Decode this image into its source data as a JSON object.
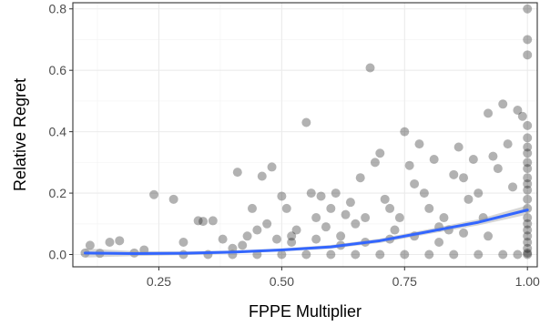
{
  "chart_data": {
    "type": "scatter",
    "title": "",
    "xlabel": "FPPE Multiplier",
    "ylabel": "Relative Regret",
    "xlim": [
      0.075,
      1.02
    ],
    "ylim": [
      -0.04,
      0.82
    ],
    "x_ticks": [
      0.25,
      0.5,
      0.75,
      1.0
    ],
    "x_tick_labels": [
      "0.25",
      "0.50",
      "0.75",
      "1.00"
    ],
    "y_ticks": [
      0.0,
      0.2,
      0.4,
      0.6,
      0.8
    ],
    "y_tick_labels": [
      "0.0",
      "0.2",
      "0.4",
      "0.6",
      "0.8"
    ],
    "grid": true,
    "legend": "none",
    "colors": {
      "points": "#000000",
      "smooth_line": "#3366FF",
      "confidence_band": "#999999",
      "grid_major": "#ebebeb",
      "grid_minor": "#f5f5f5",
      "panel_border": "#333333",
      "tick_text": "#4d4d4d"
    },
    "point_alpha": 0.3,
    "points": [
      [
        0.1,
        0.005
      ],
      [
        0.11,
        0.03
      ],
      [
        0.13,
        0.004
      ],
      [
        0.15,
        0.04
      ],
      [
        0.17,
        0.045
      ],
      [
        0.2,
        0.005
      ],
      [
        0.22,
        0.015
      ],
      [
        0.24,
        0.195
      ],
      [
        0.28,
        0.18
      ],
      [
        0.3,
        0.04
      ],
      [
        0.33,
        0.11
      ],
      [
        0.34,
        0.108
      ],
      [
        0.36,
        0.11
      ],
      [
        0.38,
        0.05
      ],
      [
        0.4,
        0.02
      ],
      [
        0.41,
        0.268
      ],
      [
        0.43,
        0.06
      ],
      [
        0.44,
        0.15
      ],
      [
        0.45,
        0.08
      ],
      [
        0.46,
        0.255
      ],
      [
        0.47,
        0.1
      ],
      [
        0.48,
        0.285
      ],
      [
        0.49,
        0.05
      ],
      [
        0.5,
        0.19
      ],
      [
        0.51,
        0.15
      ],
      [
        0.52,
        0.06
      ],
      [
        0.53,
        0.08
      ],
      [
        0.55,
        0.43
      ],
      [
        0.56,
        0.2
      ],
      [
        0.57,
        0.12
      ],
      [
        0.58,
        0.19
      ],
      [
        0.59,
        0.09
      ],
      [
        0.6,
        0.15
      ],
      [
        0.61,
        0.2
      ],
      [
        0.62,
        0.06
      ],
      [
        0.63,
        0.13
      ],
      [
        0.64,
        0.17
      ],
      [
        0.65,
        0.1
      ],
      [
        0.66,
        0.25
      ],
      [
        0.67,
        0.12
      ],
      [
        0.68,
        0.608
      ],
      [
        0.69,
        0.3
      ],
      [
        0.7,
        0.33
      ],
      [
        0.71,
        0.18
      ],
      [
        0.72,
        0.15
      ],
      [
        0.73,
        0.08
      ],
      [
        0.74,
        0.12
      ],
      [
        0.75,
        0.4
      ],
      [
        0.76,
        0.29
      ],
      [
        0.77,
        0.23
      ],
      [
        0.78,
        0.36
      ],
      [
        0.79,
        0.2
      ],
      [
        0.8,
        0.15
      ],
      [
        0.81,
        0.31
      ],
      [
        0.82,
        0.09
      ],
      [
        0.83,
        0.12
      ],
      [
        0.84,
        0.08
      ],
      [
        0.85,
        0.26
      ],
      [
        0.86,
        0.35
      ],
      [
        0.87,
        0.25
      ],
      [
        0.88,
        0.18
      ],
      [
        0.89,
        0.31
      ],
      [
        0.9,
        0.2
      ],
      [
        0.91,
        0.12
      ],
      [
        0.92,
        0.46
      ],
      [
        0.93,
        0.32
      ],
      [
        0.94,
        0.28
      ],
      [
        0.95,
        0.49
      ],
      [
        0.96,
        0.36
      ],
      [
        0.97,
        0.22
      ],
      [
        0.98,
        0.47
      ],
      [
        0.99,
        0.45
      ],
      [
        1.0,
        0.8
      ],
      [
        1.0,
        0.7
      ],
      [
        1.0,
        0.65
      ],
      [
        1.0,
        0.42
      ],
      [
        1.0,
        0.38
      ],
      [
        1.0,
        0.35
      ],
      [
        1.0,
        0.33
      ],
      [
        1.0,
        0.3
      ],
      [
        1.0,
        0.28
      ],
      [
        1.0,
        0.25
      ],
      [
        1.0,
        0.23
      ],
      [
        1.0,
        0.21
      ],
      [
        1.0,
        0.18
      ],
      [
        1.0,
        0.15
      ],
      [
        1.0,
        0.12
      ],
      [
        1.0,
        0.1
      ],
      [
        1.0,
        0.08
      ],
      [
        1.0,
        0.06
      ],
      [
        1.0,
        0.04
      ],
      [
        1.0,
        0.02
      ],
      [
        1.0,
        0.0
      ],
      [
        1.0,
        0.005
      ],
      [
        0.3,
        0.0
      ],
      [
        0.35,
        0.0
      ],
      [
        0.4,
        0.0
      ],
      [
        0.45,
        0.0
      ],
      [
        0.5,
        0.0
      ],
      [
        0.55,
        0.0
      ],
      [
        0.6,
        0.0
      ],
      [
        0.65,
        0.0
      ],
      [
        0.7,
        0.0
      ],
      [
        0.75,
        0.0
      ],
      [
        0.8,
        0.0
      ],
      [
        0.85,
        0.0
      ],
      [
        0.9,
        0.0
      ],
      [
        0.95,
        0.0
      ],
      [
        0.98,
        0.0
      ],
      [
        0.42,
        0.03
      ],
      [
        0.52,
        0.04
      ],
      [
        0.62,
        0.03
      ],
      [
        0.72,
        0.05
      ],
      [
        0.82,
        0.04
      ],
      [
        0.92,
        0.06
      ],
      [
        0.57,
        0.05
      ],
      [
        0.67,
        0.04
      ],
      [
        0.77,
        0.06
      ],
      [
        0.87,
        0.07
      ]
    ],
    "smooth_curve": [
      [
        0.1,
        0.005
      ],
      [
        0.2,
        0.003
      ],
      [
        0.3,
        0.004
      ],
      [
        0.4,
        0.008
      ],
      [
        0.5,
        0.015
      ],
      [
        0.6,
        0.025
      ],
      [
        0.7,
        0.045
      ],
      [
        0.8,
        0.075
      ],
      [
        0.9,
        0.105
      ],
      [
        1.0,
        0.145
      ]
    ],
    "confidence_band": [
      [
        0.1,
        -0.01,
        0.02
      ],
      [
        0.2,
        -0.005,
        0.011
      ],
      [
        0.3,
        -0.002,
        0.01
      ],
      [
        0.4,
        0.003,
        0.013
      ],
      [
        0.5,
        0.01,
        0.02
      ],
      [
        0.6,
        0.019,
        0.031
      ],
      [
        0.7,
        0.038,
        0.052
      ],
      [
        0.8,
        0.067,
        0.083
      ],
      [
        0.9,
        0.095,
        0.115
      ],
      [
        1.0,
        0.13,
        0.16
      ]
    ]
  }
}
